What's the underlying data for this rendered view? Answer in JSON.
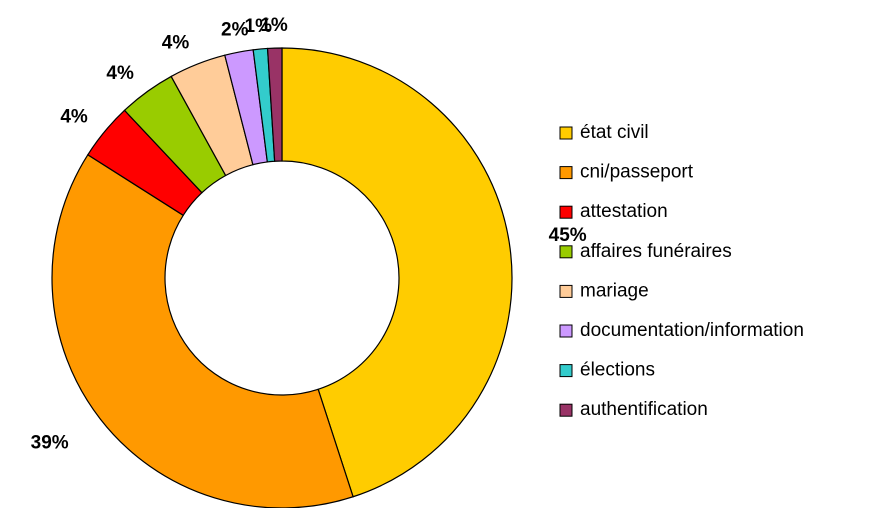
{
  "chart_data": {
    "type": "donut",
    "categories": [
      "état civil",
      "cni/passeport",
      "attestation",
      "affaires funéraires",
      "mariage",
      "documentation/information",
      "élections",
      "authentification"
    ],
    "values": [
      45,
      39,
      4,
      4,
      4,
      2,
      1,
      1
    ],
    "value_labels": [
      "45%",
      "39%",
      "4%",
      "4%",
      "4%",
      "2%",
      "1%",
      "1%"
    ],
    "colors": [
      "#ffcc00",
      "#ff9900",
      "#ff0000",
      "#99cc00",
      "#ffcc99",
      "#cc99ff",
      "#33cccc",
      "#993366"
    ],
    "legend": "right"
  }
}
